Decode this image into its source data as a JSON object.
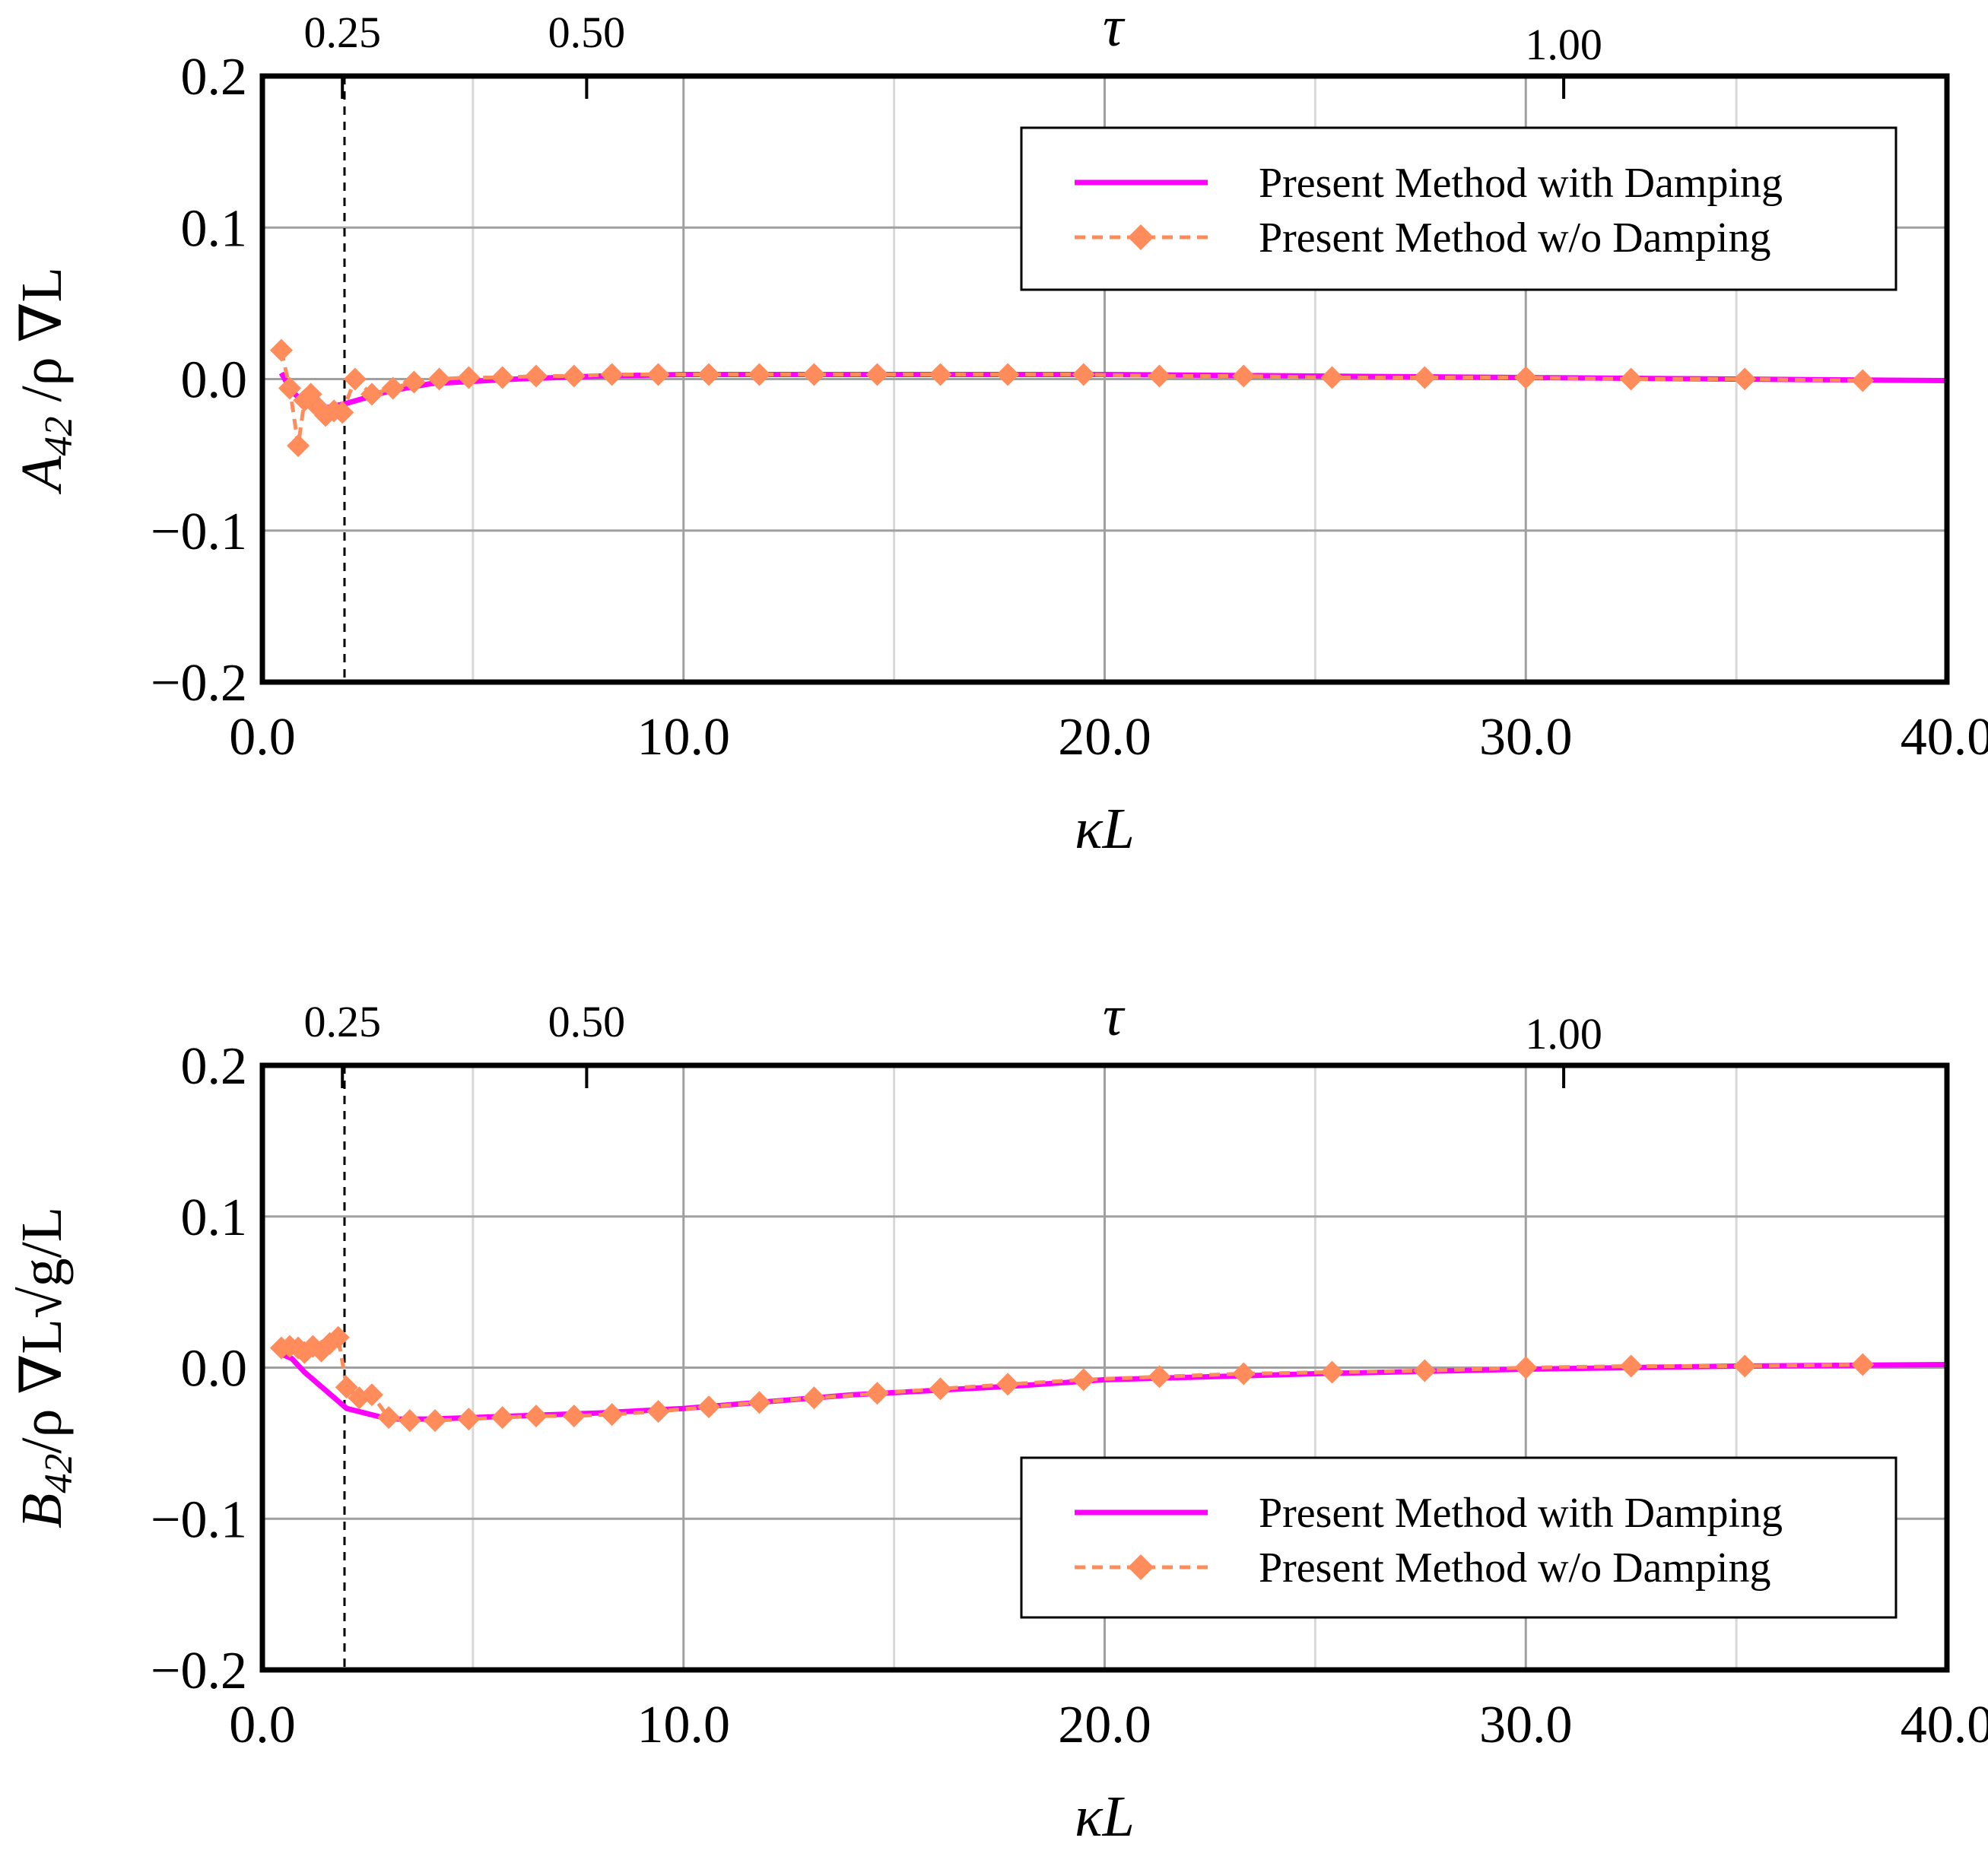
{
  "chart_data": [
    {
      "type": "line",
      "xlabel": "κL",
      "ylabel_main": "A",
      "ylabel_sub": "42",
      "ylabel_rest": " /ρ ∇L",
      "xlim": [
        0,
        40
      ],
      "ylim": [
        -0.2,
        0.2
      ],
      "x_ticks": [
        "0.0",
        "10.0",
        "20.0",
        "30.0",
        "40.0"
      ],
      "x_minor": [
        5,
        15,
        25,
        35
      ],
      "y_ticks": [
        "−0.2",
        "−0.1",
        "0.0",
        "0.1",
        "0.2"
      ],
      "top_axis": {
        "label": "τ",
        "ticks": [
          {
            "label": "0.25",
            "x": 1.9
          },
          {
            "label": "0.50",
            "x": 7.7
          },
          {
            "label": "1.00",
            "x": 30.9
          }
        ]
      },
      "reference_line_x": 1.95,
      "grid": true,
      "legend_position": "top-right",
      "series": [
        {
          "name": "Present Method with Damping",
          "style": "solid",
          "color": "#ff00ff",
          "x": [
            0.45,
            0.7,
            1.0,
            1.5,
            2.0,
            3.0,
            4.0,
            6.0,
            8.0,
            10.0,
            14.0,
            18.0,
            20.0,
            25.0,
            30.0,
            35.0,
            40.0
          ],
          "y": [
            0.004,
            -0.008,
            -0.016,
            -0.019,
            -0.016,
            -0.008,
            -0.003,
            0.0,
            0.002,
            0.003,
            0.003,
            0.003,
            0.003,
            0.002,
            0.001,
            0.0,
            -0.001
          ]
        },
        {
          "name": "Present Method w/o Damping",
          "style": "dashed-diamond",
          "color": "#ff8c5a",
          "x": [
            0.45,
            0.65,
            0.85,
            1.0,
            1.15,
            1.3,
            1.5,
            1.7,
            1.9,
            2.2,
            2.6,
            3.1,
            3.6,
            4.2,
            4.9,
            5.7,
            6.5,
            7.4,
            8.3,
            9.4,
            10.6,
            11.8,
            13.1,
            14.6,
            16.1,
            17.7,
            19.5,
            21.3,
            23.3,
            25.4,
            27.6,
            30.0,
            32.5,
            35.2,
            38.0
          ],
          "y": [
            0.019,
            -0.006,
            -0.044,
            -0.014,
            -0.01,
            -0.018,
            -0.024,
            -0.021,
            -0.022,
            0.0,
            -0.01,
            -0.006,
            -0.002,
            0.0,
            0.001,
            0.001,
            0.002,
            0.002,
            0.003,
            0.003,
            0.003,
            0.003,
            0.003,
            0.003,
            0.003,
            0.003,
            0.003,
            0.002,
            0.002,
            0.001,
            0.001,
            0.001,
            0.0,
            0.0,
            -0.001
          ]
        }
      ]
    },
    {
      "type": "line",
      "xlabel": "κL",
      "ylabel_main": "B",
      "ylabel_sub": "42",
      "ylabel_rest": "/ρ ∇L√g/L",
      "xlim": [
        0,
        40
      ],
      "ylim": [
        -0.2,
        0.2
      ],
      "x_ticks": [
        "0.0",
        "10.0",
        "20.0",
        "30.0",
        "40.0"
      ],
      "x_minor": [
        5,
        15,
        25,
        35
      ],
      "y_ticks": [
        "−0.2",
        "−0.1",
        "0.0",
        "0.1",
        "0.2"
      ],
      "top_axis": {
        "label": "τ",
        "ticks": [
          {
            "label": "0.25",
            "x": 1.9
          },
          {
            "label": "0.50",
            "x": 7.7
          },
          {
            "label": "1.00",
            "x": 30.9
          }
        ]
      },
      "reference_line_x": 1.95,
      "grid": true,
      "legend_position": "bottom-right",
      "series": [
        {
          "name": "Present Method with Damping",
          "style": "solid",
          "color": "#ff00ff",
          "x": [
            0.45,
            0.7,
            1.0,
            1.5,
            2.0,
            3.0,
            4.0,
            6.0,
            8.0,
            10.0,
            14.0,
            18.0,
            20.0,
            25.0,
            30.0,
            35.0,
            40.0
          ],
          "y": [
            0.009,
            0.006,
            -0.003,
            -0.015,
            -0.027,
            -0.034,
            -0.034,
            -0.032,
            -0.03,
            -0.027,
            -0.018,
            -0.012,
            -0.008,
            -0.004,
            -0.001,
            0.001,
            0.002
          ]
        },
        {
          "name": "Present Method w/o Damping",
          "style": "dashed-diamond",
          "color": "#ff8c5a",
          "x": [
            0.45,
            0.65,
            0.85,
            1.0,
            1.2,
            1.4,
            1.6,
            1.8,
            2.0,
            2.3,
            2.6,
            3.0,
            3.5,
            4.1,
            4.9,
            5.7,
            6.5,
            7.4,
            8.3,
            9.4,
            10.6,
            11.8,
            13.1,
            14.6,
            16.1,
            17.7,
            19.5,
            21.3,
            23.3,
            25.4,
            27.6,
            30.0,
            32.5,
            35.2,
            38.0
          ],
          "y": [
            0.013,
            0.014,
            0.013,
            0.01,
            0.014,
            0.011,
            0.016,
            0.02,
            -0.013,
            -0.02,
            -0.018,
            -0.033,
            -0.035,
            -0.035,
            -0.034,
            -0.033,
            -0.032,
            -0.032,
            -0.031,
            -0.029,
            -0.026,
            -0.023,
            -0.02,
            -0.017,
            -0.014,
            -0.011,
            -0.008,
            -0.006,
            -0.004,
            -0.003,
            -0.002,
            0.0,
            0.001,
            0.001,
            0.002
          ]
        }
      ]
    }
  ]
}
